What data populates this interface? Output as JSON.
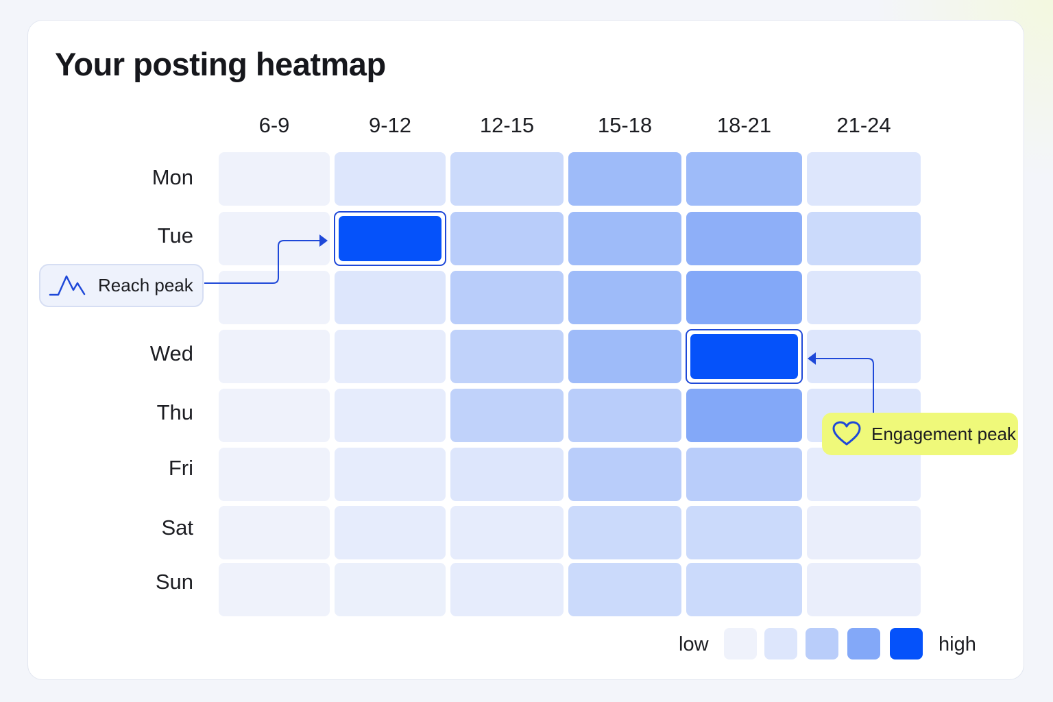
{
  "title": "Your posting heatmap",
  "chart_data": {
    "type": "heatmap",
    "columns": [
      "6-9",
      "9-12",
      "12-15",
      "15-18",
      "18-21",
      "21-24"
    ],
    "rows": [
      "Mon",
      "Tue",
      "",
      "Wed",
      "Thu",
      "Fri",
      "Sat",
      "Sun"
    ],
    "values": [
      [
        1,
        2,
        2.5,
        3.5,
        3.5,
        2
      ],
      [
        1,
        5,
        3,
        3.5,
        3.8,
        2.5
      ],
      [
        1,
        2,
        3,
        3.5,
        4,
        2
      ],
      [
        1,
        1.5,
        2.8,
        3.5,
        5,
        2
      ],
      [
        1,
        1.5,
        2.8,
        3,
        4,
        2
      ],
      [
        1,
        1.5,
        2,
        3,
        3,
        1.5
      ],
      [
        1,
        1.5,
        1.5,
        2.5,
        2.5,
        1.3
      ],
      [
        1,
        1.2,
        1.5,
        2.5,
        2.5,
        1.3
      ]
    ],
    "scale": {
      "min": 1,
      "max": 5,
      "low_label": "low",
      "high_label": "high"
    },
    "highlights": [
      {
        "label": "Reach peak",
        "row": 1,
        "col": 1,
        "icon": "line-spike-icon",
        "color": "#1e48d8"
      },
      {
        "label": "Engagement peak",
        "row": 3,
        "col": 4,
        "icon": "heart-icon",
        "color": "#eff97a"
      }
    ],
    "colors": [
      "#eff2fb",
      "#dde6fc",
      "#b9cdfa",
      "#83a8f8",
      "#0552fa"
    ]
  }
}
